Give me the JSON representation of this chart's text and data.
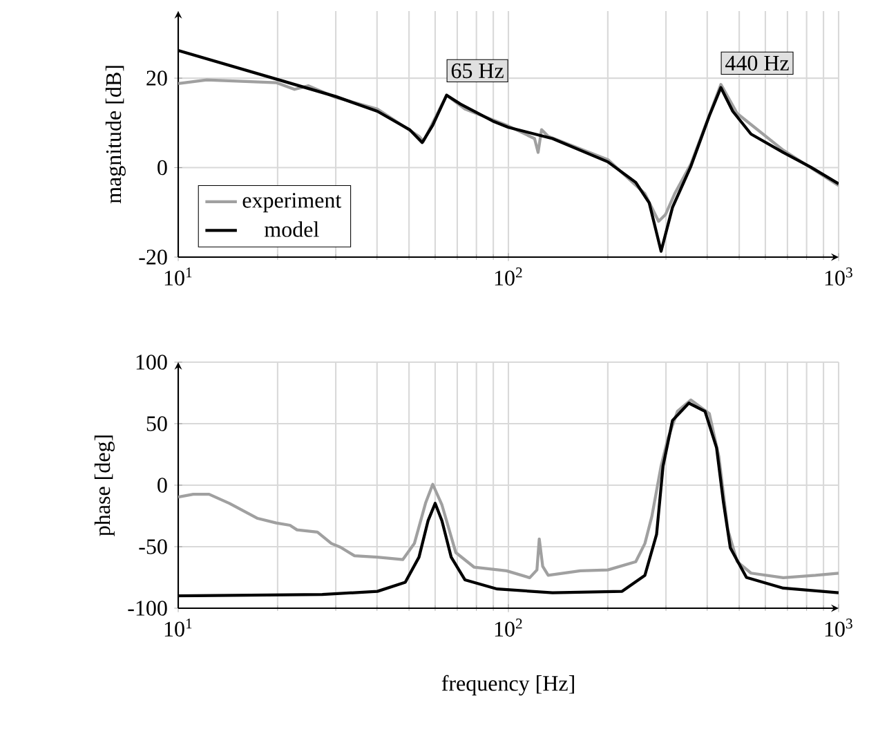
{
  "chart_data": [
    {
      "type": "line",
      "ylabel": "magnitude [dB]",
      "log": "x",
      "xlim": [
        10,
        1000
      ],
      "ylim": [
        -20,
        35
      ],
      "xticks": [
        {
          "value": 10,
          "label": "10$^{1}$"
        },
        {
          "value": 100,
          "label": "10$^{2}$"
        },
        {
          "value": 1000,
          "label": "10$^{3}$"
        }
      ],
      "yticks": [
        -20,
        0,
        20
      ],
      "grid": true,
      "legend": "bottom left",
      "line_style": "solid",
      "marker": "none",
      "series": [
        {
          "name": "experiment",
          "color": "#a0a0a0",
          "x": [
            10,
            12.2,
            19.8,
            22.5,
            24.8,
            30,
            40.1,
            53.6,
            55.3,
            59,
            65,
            73.9,
            100,
            120,
            123,
            126,
            132,
            200,
            259,
            285,
            299,
            319,
            357,
            440,
            493,
            680,
            1000
          ],
          "values": [
            18.8,
            19.6,
            19,
            17.5,
            18.3,
            15.7,
            13.1,
            7,
            5.9,
            10,
            16.2,
            13.1,
            9.3,
            6.5,
            3.4,
            8.5,
            7,
            1.8,
            -5.8,
            -12,
            -10.5,
            -5.8,
            0.8,
            18.6,
            12.1,
            3.9,
            -4
          ]
        },
        {
          "name": "model",
          "color": "#000000",
          "x": [
            10,
            19.8,
            30,
            40.1,
            50.2,
            54.8,
            59,
            65,
            71.6,
            89.7,
            100,
            136,
            200,
            243,
            267,
            290,
            314,
            357,
            406,
            440,
            478,
            543,
            680,
            824,
            1000
          ],
          "values": [
            26.2,
            19.8,
            15.9,
            12.6,
            8.5,
            5.6,
            9.5,
            16.2,
            14.2,
            10.4,
            9,
            6.5,
            1.3,
            -3.3,
            -7.9,
            -18.7,
            -8.9,
            0.3,
            11.6,
            17.9,
            12.6,
            7.5,
            3.4,
            0.1,
            -3.6
          ]
        }
      ],
      "annotations": [
        {
          "text": "65 Hz",
          "x": 65,
          "y": 16.2
        },
        {
          "text": "440 Hz",
          "x": 440,
          "y": 17.9
        }
      ]
    },
    {
      "type": "line",
      "xlabel": "frequency [Hz]",
      "ylabel": "phase [deg]",
      "log": "x",
      "xlim": [
        10,
        1000
      ],
      "ylim": [
        -100,
        100
      ],
      "xticks": [
        {
          "value": 10,
          "label": "10$^{1}$"
        },
        {
          "value": 100,
          "label": "10$^{2}$"
        },
        {
          "value": 1000,
          "label": "10$^{3}$"
        }
      ],
      "yticks": [
        -100,
        -50,
        0,
        50,
        100
      ],
      "grid": true,
      "line_style": "solid",
      "marker": "none",
      "series": [
        {
          "color": "#a0a0a0",
          "x": [
            10,
            11.1,
            12.4,
            14.3,
            17.4,
            19.8,
            21.8,
            22.9,
            26.4,
            29.1,
            31,
            34.2,
            40.1,
            47.9,
            51.9,
            56.2,
            59,
            62.9,
            69.3,
            78.8,
            98.7,
            116,
            122,
            124,
            127,
            132,
            165,
            200,
            243,
            259,
            272,
            290,
            304,
            325,
            357,
            406,
            434,
            462,
            493,
            543,
            680,
            851,
            1000
          ],
          "values": [
            -9.6,
            -7.4,
            -7.4,
            -14.8,
            -27,
            -30.7,
            -32.6,
            -36.3,
            -38.1,
            -47.4,
            -50.4,
            -57.4,
            -58.5,
            -60.4,
            -47.4,
            -14,
            0.7,
            -16,
            -54.8,
            -66.7,
            -69.6,
            -75.2,
            -68.9,
            -43.7,
            -65.9,
            -73.3,
            -69.6,
            -68.9,
            -62.2,
            -47.4,
            -25.2,
            15.6,
            37.8,
            60,
            69.3,
            58.1,
            23,
            -36.3,
            -62.2,
            -71.5,
            -75.2,
            -73.3,
            -71.5
          ]
        },
        {
          "color": "#000000",
          "x": [
            10,
            27.3,
            40.1,
            48.7,
            53.6,
            57.1,
            60,
            62.9,
            67.1,
            73.9,
            92.5,
            136,
            221,
            259,
            281,
            294,
            314,
            352,
            394,
            427,
            448,
            470,
            526,
            680,
            1000
          ],
          "values": [
            -90,
            -88.9,
            -86.3,
            -78.9,
            -58.5,
            -28.9,
            -14.8,
            -28.9,
            -58.5,
            -77,
            -84.4,
            -87.4,
            -86.3,
            -73.3,
            -40,
            15.6,
            52.6,
            66.7,
            60,
            30.4,
            -14,
            -51,
            -75,
            -83.7,
            -87.4
          ]
        }
      ]
    }
  ]
}
